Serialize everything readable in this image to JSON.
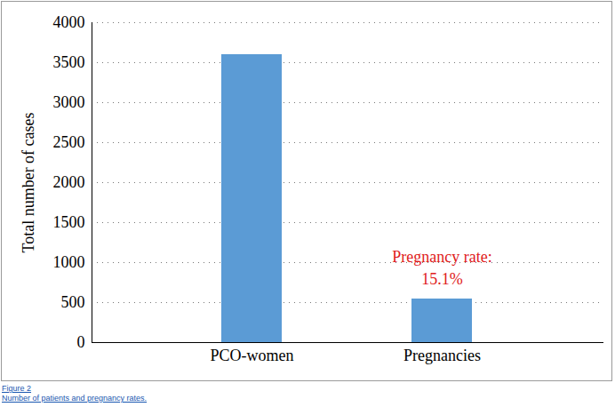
{
  "chart_data": {
    "type": "bar",
    "categories": [
      "PCO-women",
      "Pregnancies"
    ],
    "values": [
      3600,
      545
    ],
    "color": "#5b9bd5",
    "ylabel": "Total number of cases",
    "ylim": [
      0,
      4000
    ],
    "yticks": [
      0,
      500,
      1000,
      1500,
      2000,
      2500,
      3000,
      3500,
      4000
    ],
    "grid": true,
    "annotations": [
      {
        "text": "Pregnancy rate:\n15.1%",
        "category": "Pregnancies",
        "color": "#e02020"
      }
    ],
    "caption": [
      "Figure 2",
      "Number of patients and pregnancy rates."
    ]
  }
}
